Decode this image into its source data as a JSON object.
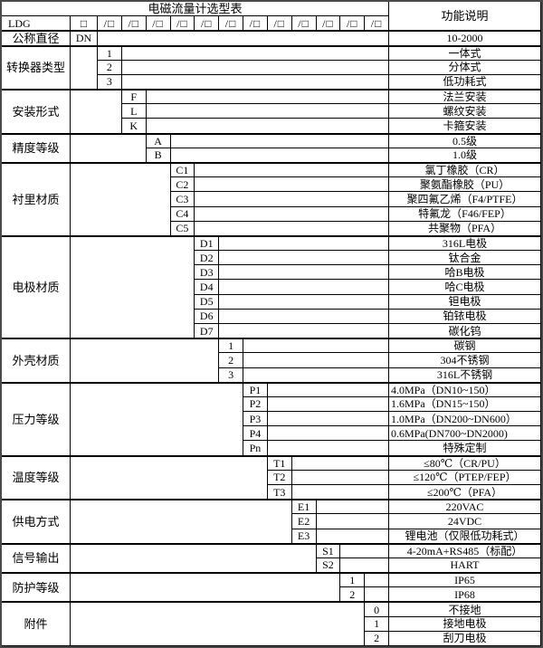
{
  "title": "电磁流量计选型表",
  "right_header": "功能说明",
  "model_row": {
    "label": "LDG",
    "first_box": "□",
    "slot": "/□"
  },
  "groups": [
    {
      "name": "公称直径",
      "rows": [
        {
          "code": "DN",
          "desc": "10-2000"
        }
      ]
    },
    {
      "name": "转换器类型",
      "rows": [
        {
          "code": "1",
          "desc": "一体式"
        },
        {
          "code": "2",
          "desc": "分体式"
        },
        {
          "code": "3",
          "desc": "低功耗式"
        }
      ]
    },
    {
      "name": "安装形式",
      "rows": [
        {
          "code": "F",
          "desc": "法兰安装"
        },
        {
          "code": "L",
          "desc": "螺纹安装"
        },
        {
          "code": "K",
          "desc": "卡箍安装"
        }
      ]
    },
    {
      "name": "精度等级",
      "rows": [
        {
          "code": "A",
          "desc": "0.5级"
        },
        {
          "code": "B",
          "desc": "1.0级"
        }
      ]
    },
    {
      "name": "衬里材质",
      "rows": [
        {
          "code": "C1",
          "desc": "氯丁橡胶（CR）"
        },
        {
          "code": "C2",
          "desc": "聚氨酯橡胶（PU）"
        },
        {
          "code": "C3",
          "desc": "聚四氟乙烯（F4/PTFE）"
        },
        {
          "code": "C4",
          "desc": "特氟龙（F46/FEP）"
        },
        {
          "code": "C5",
          "desc": "共聚物（PFA）"
        }
      ]
    },
    {
      "name": "电极材质",
      "rows": [
        {
          "code": "D1",
          "desc": "316L电极"
        },
        {
          "code": "D2",
          "desc": "钛合金"
        },
        {
          "code": "D3",
          "desc": "哈B电极"
        },
        {
          "code": "D4",
          "desc": "哈C电极"
        },
        {
          "code": "D5",
          "desc": "钽电极"
        },
        {
          "code": "D6",
          "desc": "铂铱电极"
        },
        {
          "code": "D7",
          "desc": "碳化钨"
        }
      ]
    },
    {
      "name": "外壳材质",
      "rows": [
        {
          "code": "1",
          "desc": "碳钢"
        },
        {
          "code": "2",
          "desc": "304不锈钢"
        },
        {
          "code": "3",
          "desc": "316L不锈钢"
        }
      ]
    },
    {
      "name": "压力等级",
      "rows": [
        {
          "code": "P1",
          "desc": "4.0MPa（DN10~150）"
        },
        {
          "code": "P2",
          "desc": "1.6MPa（DN15~150）"
        },
        {
          "code": "P3",
          "desc": "1.0MPa（DN200~DN600）"
        },
        {
          "code": "P4",
          "desc": "0.6MPa(DN700~DN2000)"
        },
        {
          "code": "Pn",
          "desc": "特殊定制"
        }
      ]
    },
    {
      "name": "温度等级",
      "rows": [
        {
          "code": "T1",
          "desc": "≤80℃（CR/PU）"
        },
        {
          "code": "T2",
          "desc": "≤120℃（PTEP/FEP）"
        },
        {
          "code": "T3",
          "desc": "≤200℃（PFA）"
        }
      ]
    },
    {
      "name": "供电方式",
      "rows": [
        {
          "code": "E1",
          "desc": "220VAC"
        },
        {
          "code": "E2",
          "desc": "24VDC"
        },
        {
          "code": "E3",
          "desc": "锂电池（仅限低功耗式）"
        }
      ]
    },
    {
      "name": "信号输出",
      "rows": [
        {
          "code": "S1",
          "desc": "4-20mA+RS485（标配）"
        },
        {
          "code": "S2",
          "desc": "HART"
        }
      ]
    },
    {
      "name": "防护等级",
      "rows": [
        {
          "code": "1",
          "desc": "IP65"
        },
        {
          "code": "2",
          "desc": "IP68"
        }
      ]
    },
    {
      "name": "附件",
      "rows": [
        {
          "code": "0",
          "desc": "不接地"
        },
        {
          "code": "1",
          "desc": "接地电极"
        },
        {
          "code": "2",
          "desc": "刮刀电极"
        }
      ]
    }
  ],
  "colors": {
    "border": "#000000",
    "background": "#ffffff",
    "text": "#000000",
    "outer_border": "#4a4a4a"
  }
}
